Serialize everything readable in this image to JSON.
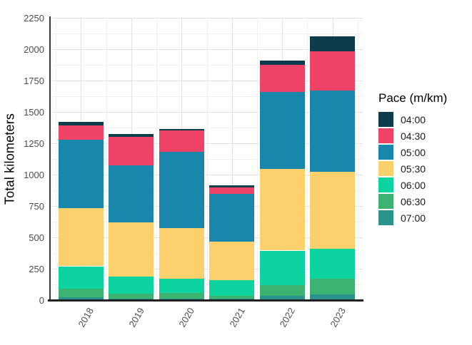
{
  "chart_data": {
    "type": "bar",
    "stacked": true,
    "orientation": "vertical",
    "title": "",
    "xlabel": "",
    "ylabel": "Total kilometers",
    "categories": [
      "2018",
      "2019",
      "2020",
      "2021",
      "2022",
      "2023"
    ],
    "ylim": [
      0,
      2250
    ],
    "yticks": [
      "0",
      "250",
      "500",
      "750",
      "1000",
      "1250",
      "1500",
      "1750",
      "2000",
      "2250"
    ],
    "ytick_step": 250,
    "minor_grid_step": 125,
    "grid": true,
    "background": "#ffffff",
    "axis_color": "#383838",
    "legend": {
      "title": "Pace (m/km)",
      "position": "right"
    },
    "series": [
      {
        "name": "04:00",
        "color": "#0d3d4c",
        "values": [
          30,
          25,
          15,
          15,
          35,
          115
        ]
      },
      {
        "name": "04:30",
        "color": "#ee4266",
        "values": [
          110,
          225,
          170,
          55,
          215,
          315
        ]
      },
      {
        "name": "05:00",
        "color": "#1887ab",
        "values": [
          545,
          455,
          605,
          380,
          615,
          650
        ]
      },
      {
        "name": "05:30",
        "color": "#fdd06e",
        "values": [
          465,
          435,
          405,
          305,
          650,
          610
        ]
      },
      {
        "name": "06:00",
        "color": "#0cd3a0",
        "values": [
          180,
          135,
          115,
          125,
          275,
          240
        ]
      },
      {
        "name": "06:30",
        "color": "#3cb371",
        "values": [
          70,
          40,
          45,
          25,
          85,
          125
        ]
      },
      {
        "name": "07:00",
        "color": "#2b938c",
        "values": [
          20,
          10,
          10,
          10,
          35,
          45
        ]
      }
    ]
  }
}
